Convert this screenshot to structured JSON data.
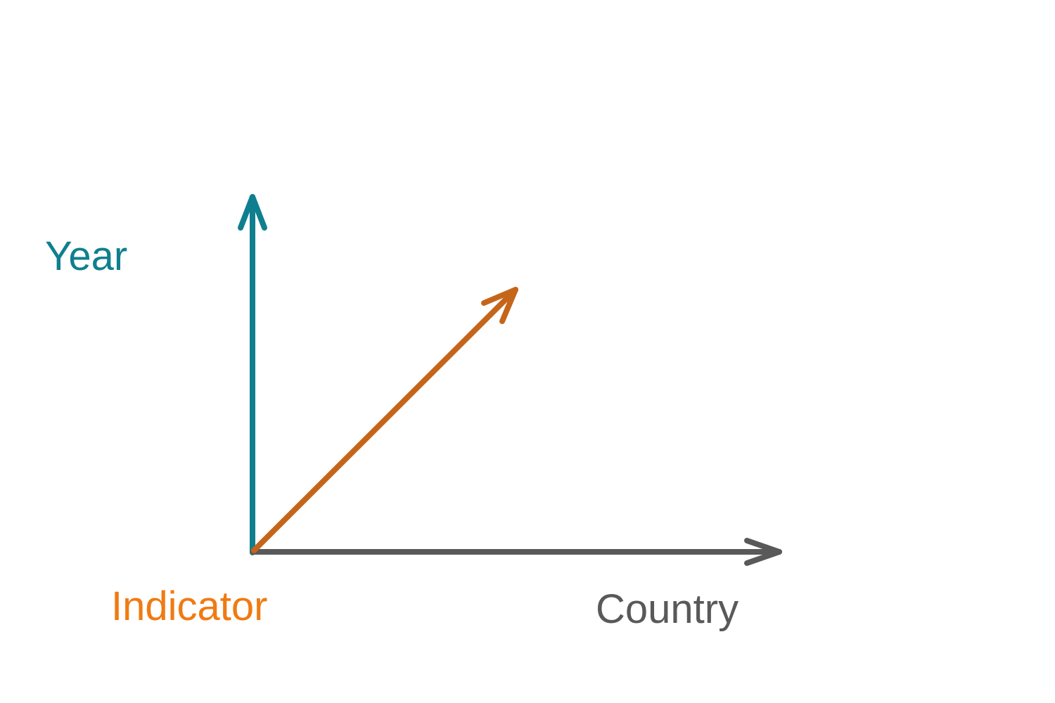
{
  "axes": [
    {
      "id": "year",
      "label": "Year",
      "color": "#0f7f8f"
    },
    {
      "id": "indicator",
      "label": "Indicator",
      "color": "#f07a12"
    },
    {
      "id": "country",
      "label": "Country",
      "color": "#595959"
    }
  ],
  "arrow_colors": {
    "year": "#0f7f8f",
    "indicator": "#c5651a",
    "country": "#595959"
  }
}
